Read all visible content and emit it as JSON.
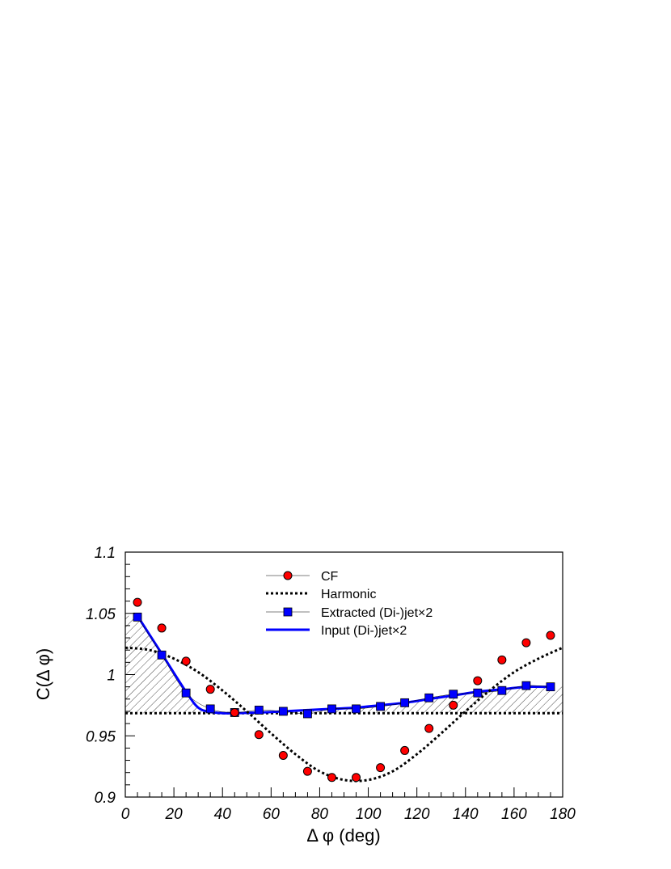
{
  "chart_data": {
    "type": "line",
    "xlabel": "Δ φ (deg)",
    "ylabel": "C(Δ φ)",
    "xlim": [
      0,
      180
    ],
    "ylim": [
      0.9,
      1.1
    ],
    "xticks": [
      "0",
      "20",
      "40",
      "60",
      "80",
      "100",
      "120",
      "140",
      "160",
      "180"
    ],
    "yticks": [
      "0.9",
      "0.95",
      "1",
      "1.05",
      "1.1"
    ],
    "legend_position": "top-center",
    "harmonic_baseline": 0.9685,
    "series": [
      {
        "name": "CF",
        "kind": "markers-circle",
        "color": "#ff0000",
        "x": [
          5,
          15,
          25,
          35,
          45,
          55,
          65,
          75,
          85,
          95,
          105,
          115,
          125,
          135,
          145,
          155,
          165,
          175
        ],
        "y": [
          1.059,
          1.038,
          1.011,
          0.988,
          0.969,
          0.951,
          0.934,
          0.921,
          0.916,
          0.916,
          0.924,
          0.938,
          0.956,
          0.975,
          0.995,
          1.012,
          1.026,
          1.032
        ]
      },
      {
        "name": "Harmonic",
        "kind": "dotted-line",
        "color": "#000000",
        "x": [
          0,
          10,
          20,
          30,
          40,
          50,
          60,
          70,
          80,
          90,
          100,
          110,
          120,
          130,
          140,
          150,
          160,
          170,
          180
        ],
        "y": [
          1.022,
          1.02,
          1.013,
          1.002,
          0.987,
          0.97,
          0.952,
          0.935,
          0.921,
          0.914,
          0.914,
          0.921,
          0.935,
          0.952,
          0.97,
          0.987,
          1.002,
          1.013,
          1.022
        ]
      },
      {
        "name": "Extracted (Di-)jet×2",
        "kind": "markers-square",
        "color": "#0000ff",
        "x": [
          5,
          15,
          25,
          35,
          45,
          55,
          65,
          75,
          85,
          95,
          105,
          115,
          125,
          135,
          145,
          155,
          165,
          175
        ],
        "y": [
          1.047,
          1.016,
          0.985,
          0.972,
          0.969,
          0.971,
          0.97,
          0.968,
          0.972,
          0.972,
          0.974,
          0.977,
          0.981,
          0.984,
          0.985,
          0.987,
          0.991,
          0.99
        ]
      },
      {
        "name": "Input (Di-)jet×2",
        "kind": "solid-line",
        "color": "#0000ff",
        "x": [
          5,
          15,
          25,
          30,
          35,
          40,
          45,
          55,
          65,
          75,
          85,
          95,
          105,
          115,
          125,
          135,
          145,
          155,
          165,
          175
        ],
        "y": [
          1.048,
          1.017,
          0.986,
          0.973,
          0.9695,
          0.9685,
          0.9685,
          0.969,
          0.97,
          0.971,
          0.972,
          0.973,
          0.975,
          0.977,
          0.98,
          0.983,
          0.986,
          0.988,
          0.99,
          0.99
        ]
      }
    ]
  }
}
